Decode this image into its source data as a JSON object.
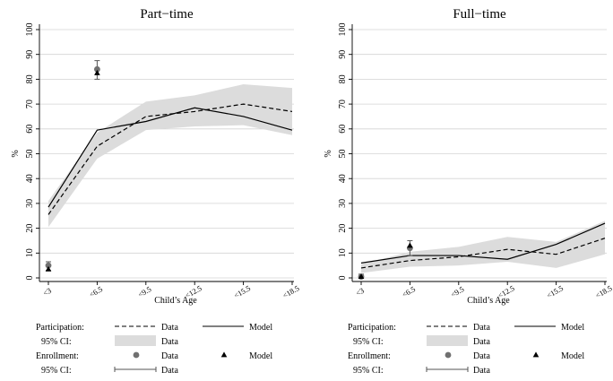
{
  "chart_data": [
    {
      "type": "line",
      "title": "Part−time",
      "xlabel": "Child’s Age",
      "ylabel": "%",
      "categories": [
        "<3",
        "<6.5",
        "<9.5",
        "<12.5",
        "<15.5",
        "<18.5"
      ],
      "yticks": [
        "0",
        "10",
        "20",
        "30",
        "40",
        "50",
        "60",
        "70",
        "80",
        "90",
        "100"
      ],
      "ylim": [
        0,
        100
      ],
      "grid": true,
      "series": [
        {
          "name": "Participation Data",
          "style": "dashed",
          "values": [
            25.5,
            53,
            65,
            67,
            70,
            67
          ]
        },
        {
          "name": "Participation Model",
          "style": "solid",
          "values": [
            28.5,
            59.5,
            63,
            68.5,
            65,
            59.5
          ]
        }
      ],
      "ci_band": {
        "lower": [
          20.5,
          48,
          59.5,
          61,
          61.5,
          57.5
        ],
        "upper": [
          31,
          58.5,
          71,
          73.5,
          78,
          76.5
        ]
      },
      "enrollment": {
        "x": [
          "<3",
          "<6.5"
        ],
        "data": [
          5,
          84
        ],
        "model": [
          3.5,
          82.5
        ],
        "ci_lower": [
          3,
          80
        ],
        "ci_upper": [
          6.5,
          87.5
        ]
      }
    },
    {
      "type": "line",
      "title": "Full−time",
      "xlabel": "Child’s Age",
      "ylabel": "%",
      "categories": [
        "<3",
        "<6.5",
        "<9.5",
        "<12.5",
        "<15.5",
        "<18.5"
      ],
      "yticks": [
        "0",
        "10",
        "20",
        "30",
        "40",
        "50",
        "60",
        "70",
        "80",
        "90",
        "100"
      ],
      "ylim": [
        0,
        100
      ],
      "grid": true,
      "series": [
        {
          "name": "Participation Data",
          "style": "dashed",
          "values": [
            4,
            7,
            8.5,
            11.5,
            9.5,
            16
          ]
        },
        {
          "name": "Participation Model",
          "style": "solid",
          "values": [
            6,
            9,
            9,
            7.5,
            13.5,
            22
          ]
        }
      ],
      "ci_band": {
        "lower": [
          2,
          4.5,
          5,
          6.5,
          4,
          9.5
        ],
        "upper": [
          5.5,
          10.5,
          12.5,
          16.5,
          14.5,
          23
        ]
      },
      "enrollment": {
        "x": [
          "<3",
          "<6.5"
        ],
        "data": [
          0.5,
          12
        ],
        "model": [
          0.5,
          13
        ],
        "ci_lower": [
          0,
          9
        ],
        "ci_upper": [
          1.5,
          15
        ]
      }
    }
  ],
  "legend": {
    "participation_label": "Participation:",
    "enrollment_label": "Enrollment:",
    "ci_label": "95% CI:",
    "data_label": "Data",
    "model_label": "Model"
  },
  "colors": {
    "ci_band": "#dcdcdc",
    "grid": "#d4d4d4",
    "enrollment_data": "#707070",
    "line": "#000000"
  }
}
